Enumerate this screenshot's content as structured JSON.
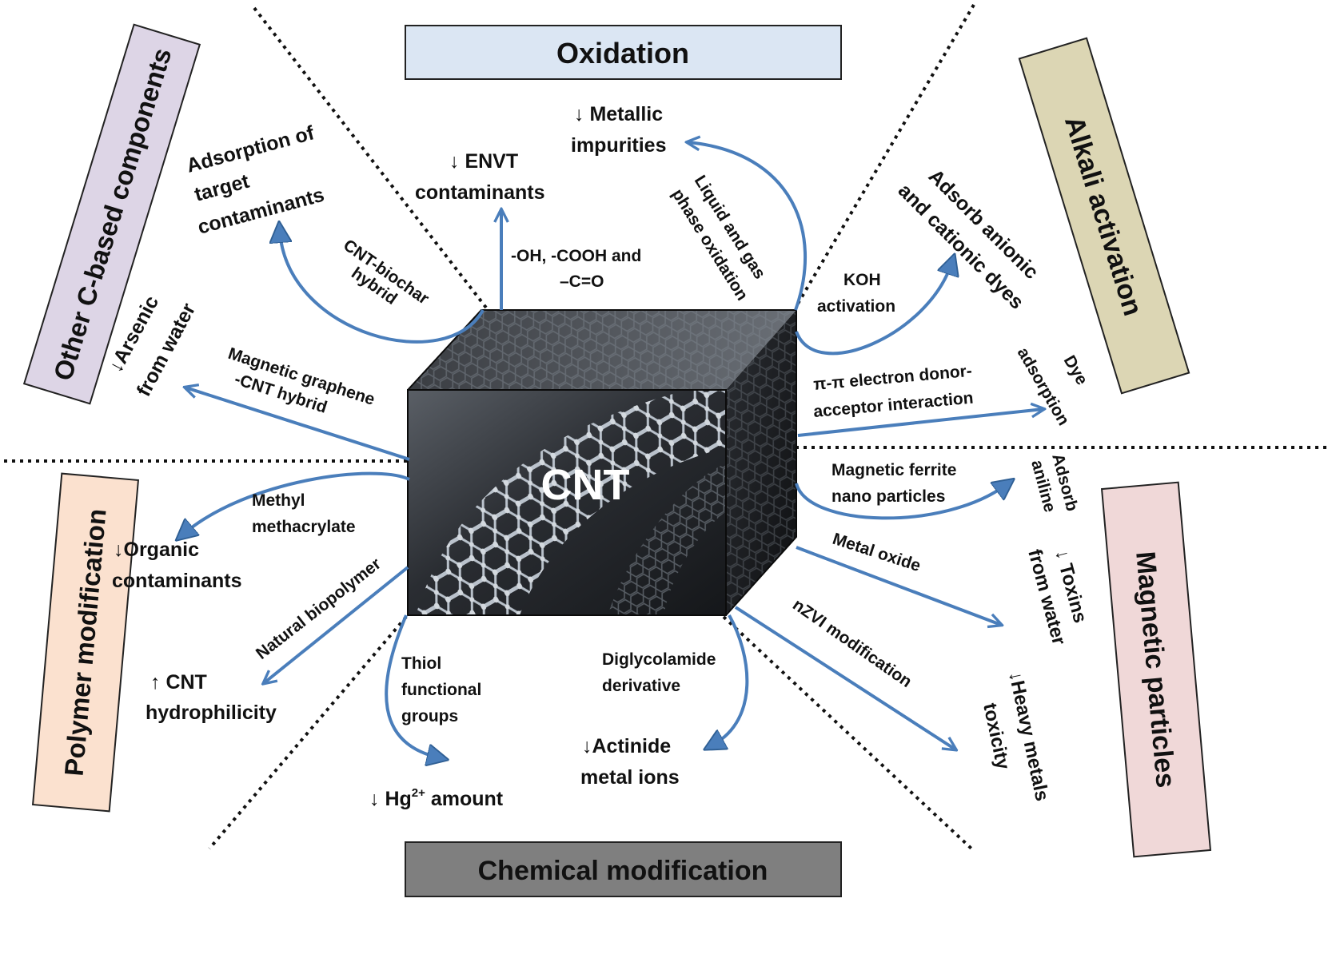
{
  "categories": {
    "oxidation": "Oxidation",
    "alkali": "Alkali activation",
    "magnetic": "Magnetic particles",
    "chemical": "Chemical modification",
    "polymer": "Polymer modification",
    "other_c": "Other C-based components"
  },
  "center": {
    "label": "CNT"
  },
  "colors": {
    "oxidation_box": "#dbe6f3",
    "alkali_box": "#dcd6b4",
    "magnetic_box": "#f0d8d8",
    "chemical_box": "#7f7f7f",
    "polymer_box": "#fbe1cf",
    "other_box": "#ddd5e6",
    "arrow": "#4a7ebb"
  },
  "labels": {
    "metallic_1": "↓ Metallic",
    "metallic_2": "impurities",
    "envt_1": "↓ ENVT",
    "envt_2": "contaminants",
    "groups_1": "-OH, -COOH and",
    "groups_2": "–C=O",
    "liquid_gas_1": "Liquid and gas",
    "liquid_gas_2": "phase oxidation",
    "target_1": "Adsorption of",
    "target_2": "target",
    "target_3": "contaminants",
    "biochar_1": "CNT-biochar",
    "biochar_2": "hybrid",
    "arsenic_1": "↓Arsenic",
    "arsenic_2": "from water",
    "mag_graphene_1": "Magnetic graphene",
    "mag_graphene_2": "-CNT hybrid",
    "koh_1": "KOH",
    "koh_2": "activation",
    "dyes_1": "Adsorb anionic",
    "dyes_2": "and cationic dyes",
    "pipi_1": "π-π electron donor-",
    "pipi_2": "acceptor interaction",
    "dye_ads_1": "Dye",
    "dye_ads_2": "adsorption",
    "ferrite_1": "Magnetic ferrite",
    "ferrite_2": "nano particles",
    "aniline_1": "Adsorb",
    "aniline_2": "aniline",
    "metal_oxide": "Metal oxide",
    "toxins_1": "↓ Toxins",
    "toxins_2": "from water",
    "nzvi": "nZVI modification",
    "heavy_1": "↓Heavy metals",
    "heavy_2": "toxicity",
    "methyl_1": "Methyl",
    "methyl_2": "methacrylate",
    "organic_1": "↓Organic",
    "organic_2": "contaminants",
    "biopolymer": "Natural biopolymer",
    "hydro_1": "↑ CNT",
    "hydro_2": "hydrophilicity",
    "thiol_1": "Thiol",
    "thiol_2": "functional",
    "thiol_3": "groups",
    "hg_1": "↓ Hg",
    "hg_sup": "2+",
    "hg_2": " amount",
    "digly_1": "Diglycolamide",
    "digly_2": "derivative",
    "actinide_1": "↓Actinide",
    "actinide_2": "metal ions"
  }
}
